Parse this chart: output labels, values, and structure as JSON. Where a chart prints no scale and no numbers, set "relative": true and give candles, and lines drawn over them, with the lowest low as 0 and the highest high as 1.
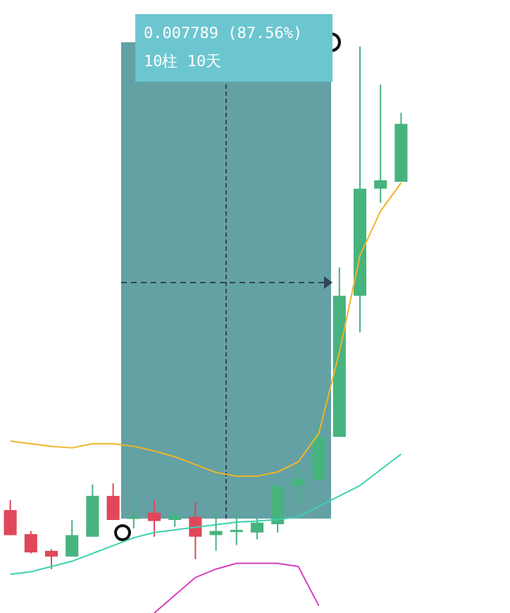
{
  "chart_data": {
    "type": "candlestick",
    "relative": true,
    "categories": [
      null,
      null,
      null,
      null,
      null,
      null,
      null,
      null,
      null,
      null,
      null,
      null,
      null,
      null,
      null,
      null,
      null,
      null,
      null,
      null
    ],
    "ohlc": [
      [
        0.113,
        0.132,
        0.065,
        0.065
      ],
      [
        0.067,
        0.073,
        0.03,
        0.032
      ],
      [
        0.035,
        0.038,
        0,
        0.024
      ],
      [
        0.024,
        0.094,
        0.024,
        0.065
      ],
      [
        0.062,
        0.162,
        0.062,
        0.14
      ],
      [
        0.14,
        0.164,
        0.094,
        0.094
      ],
      [
        0.1,
        0.14,
        0.078,
        0.097
      ],
      [
        0.108,
        0.132,
        0.062,
        0.092
      ],
      [
        0.094,
        0.113,
        0.081,
        0.102
      ],
      [
        0.1,
        0.129,
        0.019,
        0.062
      ],
      [
        0.065,
        0.108,
        0.035,
        0.073
      ],
      [
        0.073,
        0.108,
        0.046,
        0.075
      ],
      [
        0.07,
        0.097,
        0.057,
        0.089
      ],
      [
        0.086,
        0.164,
        0.07,
        0.159
      ],
      [
        0.159,
        0.199,
        0.124,
        0.173
      ],
      [
        0.17,
        0.28,
        0.17,
        0.253
      ],
      [
        0.253,
        0.577,
        0.253,
        0.523
      ],
      [
        0.523,
        1,
        0.453,
        0.728
      ],
      [
        0.728,
        0.927,
        0.701,
        0.744
      ],
      [
        0.741,
        0.873,
        0.741,
        0.852
      ]
    ],
    "colors": [
      "#e0475a",
      "#e0475a",
      "#e0475a",
      "#47b37f",
      "#47b37f",
      "#e0475a",
      "#47b37f",
      "#e0475a",
      "#47b37f",
      "#e0475a",
      "#47b37f",
      "#47b37f",
      "#47b37f",
      "#47b37f",
      "#47b37f",
      "#47b37f",
      "#47b37f",
      "#47b37f",
      "#47b37f",
      "#47b37f"
    ],
    "series": [
      {
        "type": "line",
        "color": "#f0b429",
        "values": [
          0.245,
          0.24,
          0.235,
          0.232,
          0.24,
          0.24,
          0.235,
          0.226,
          0.215,
          0.2,
          0.185,
          0.178,
          0.178,
          0.186,
          0.205,
          0.26,
          0.415,
          0.6,
          0.685,
          0.739
        ]
      },
      {
        "type": "line",
        "color": "#3fd1b0",
        "values": [
          -0.01,
          -0.005,
          0.005,
          0.015,
          0.03,
          0.045,
          0.06,
          0.07,
          0.075,
          0.08,
          0.085,
          0.09,
          0.092,
          0.095,
          0.1,
          0.12,
          0.14,
          0.16,
          0.19,
          0.22
        ]
      },
      {
        "type": "line",
        "color": "#d63fc0",
        "values": [
          null,
          null,
          null,
          null,
          null,
          null,
          null,
          -0.084,
          -0.05,
          -0.016,
          0,
          0.011,
          0.011,
          0.011,
          0.005,
          -0.07,
          null,
          null,
          null,
          null
        ]
      }
    ],
    "annotations": [
      "0.007789 (87.56%)",
      "10柱 10天"
    ]
  }
}
